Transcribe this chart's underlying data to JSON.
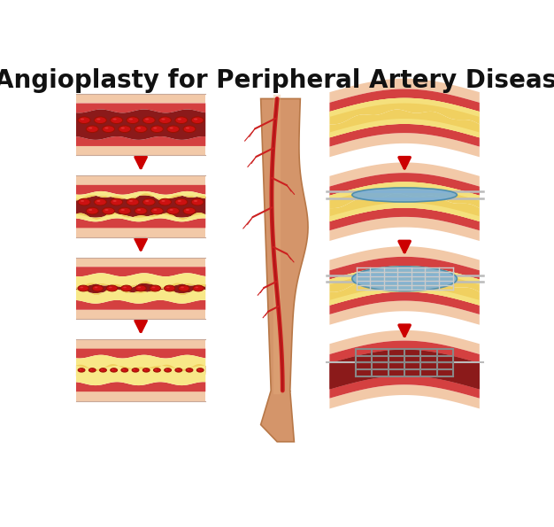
{
  "title": "Angioplasty for Peripheral Artery Disease",
  "title_fontsize": 20,
  "title_fontweight": "bold",
  "bg": "#ffffff",
  "colors": {
    "skin_outer": "#f2c9a8",
    "skin_mid": "#e8b898",
    "wall_red": "#d44040",
    "wall_dark": "#b83030",
    "blood_red": "#8b1a1a",
    "blood_mid": "#a02020",
    "rbc_bright": "#cc1111",
    "rbc_dark": "#991100",
    "plaque_yellow": "#f0d060",
    "plaque_light": "#f8e888",
    "plaque_edge": "#c8a020",
    "arrow_red": "#cc0000",
    "leg_skin": "#d4956a",
    "leg_highlight": "#e8b080",
    "leg_shadow": "#b87848",
    "artery_red": "#cc2020",
    "artery_dark": "#991010",
    "balloon_blue": "#7ab0d8",
    "balloon_light": "#aaccee",
    "balloon_dark": "#4488aa",
    "stent_wire": "#cccccc",
    "stent_dark": "#888888",
    "catheter": "#bbbbbb"
  }
}
